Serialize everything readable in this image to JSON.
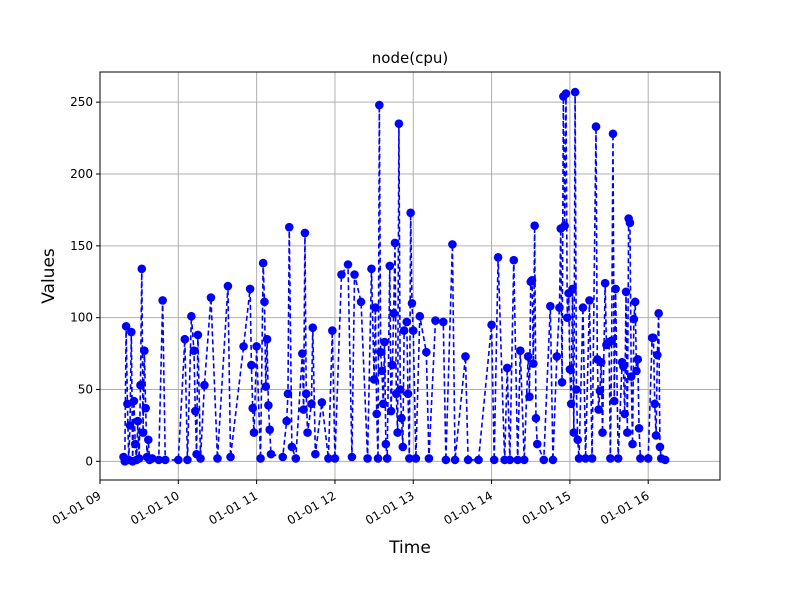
{
  "chart_data": {
    "type": "line",
    "title": "node(cpu)",
    "xlabel": "Time",
    "ylabel": "Values",
    "x_ticks": [
      "01-01 09",
      "01-01 10",
      "01-01 11",
      "01-01 12",
      "01-01 13",
      "01-01 14",
      "01-01 15",
      "01-01 16"
    ],
    "y_ticks": [
      "0",
      "50",
      "100",
      "150",
      "200",
      "250"
    ],
    "xlim": [
      "01-01 09:00",
      "01-01 16:55"
    ],
    "ylim": [
      -13,
      271
    ],
    "grid": true,
    "line_style": "dashed",
    "marker": "circle",
    "color": "#0000ff",
    "series": [
      {
        "points": [
          [
            "09:18",
            3
          ],
          [
            "09:19",
            0
          ],
          [
            "09:20",
            94
          ],
          [
            "09:21",
            40
          ],
          [
            "09:22",
            1
          ],
          [
            "09:23",
            25
          ],
          [
            "09:24",
            90
          ],
          [
            "09:25",
            0
          ],
          [
            "09:26",
            42
          ],
          [
            "09:27",
            12
          ],
          [
            "09:28",
            1
          ],
          [
            "09:29",
            28
          ],
          [
            "09:30",
            2
          ],
          [
            "09:31",
            53
          ],
          [
            "09:32",
            134
          ],
          [
            "09:33",
            20
          ],
          [
            "09:34",
            77
          ],
          [
            "09:35",
            37
          ],
          [
            "09:36",
            3
          ],
          [
            "09:37",
            15
          ],
          [
            "09:38",
            1
          ],
          [
            "09:40",
            2
          ],
          [
            "09:45",
            1
          ],
          [
            "09:48",
            112
          ],
          [
            "09:50",
            1
          ],
          [
            "10:00",
            1
          ],
          [
            "10:05",
            85
          ],
          [
            "10:07",
            1
          ],
          [
            "10:10",
            101
          ],
          [
            "10:12",
            77
          ],
          [
            "10:13",
            35
          ],
          [
            "10:14",
            5
          ],
          [
            "10:15",
            88
          ],
          [
            "10:17",
            2
          ],
          [
            "10:20",
            53
          ],
          [
            "10:25",
            114
          ],
          [
            "10:30",
            2
          ],
          [
            "10:38",
            122
          ],
          [
            "10:40",
            3
          ],
          [
            "10:50",
            80
          ],
          [
            "10:55",
            120
          ],
          [
            "10:56",
            67
          ],
          [
            "10:57",
            37
          ],
          [
            "10:58",
            20
          ],
          [
            "11:00",
            80
          ],
          [
            "11:03",
            2
          ],
          [
            "11:05",
            138
          ],
          [
            "11:06",
            111
          ],
          [
            "11:07",
            52
          ],
          [
            "11:08",
            85
          ],
          [
            "11:09",
            39
          ],
          [
            "11:10",
            22
          ],
          [
            "11:11",
            5
          ],
          [
            "11:20",
            3
          ],
          [
            "11:23",
            28
          ],
          [
            "11:24",
            47
          ],
          [
            "11:25",
            163
          ],
          [
            "11:27",
            10
          ],
          [
            "11:30",
            2
          ],
          [
            "11:35",
            75
          ],
          [
            "11:36",
            36
          ],
          [
            "11:37",
            159
          ],
          [
            "11:38",
            47
          ],
          [
            "11:39",
            20
          ],
          [
            "11:42",
            40
          ],
          [
            "11:43",
            93
          ],
          [
            "11:45",
            5
          ],
          [
            "11:50",
            41
          ],
          [
            "11:55",
            2
          ],
          [
            "11:58",
            91
          ],
          [
            "12:00",
            2
          ],
          [
            "12:05",
            130
          ],
          [
            "12:10",
            137
          ],
          [
            "12:13",
            3
          ],
          [
            "12:15",
            130
          ],
          [
            "12:20",
            111
          ],
          [
            "12:25",
            2
          ],
          [
            "12:28",
            134
          ],
          [
            "12:30",
            57
          ],
          [
            "12:31",
            107
          ],
          [
            "12:32",
            33
          ],
          [
            "12:33",
            2
          ],
          [
            "12:34",
            248
          ],
          [
            "12:35",
            76
          ],
          [
            "12:36",
            63
          ],
          [
            "12:37",
            40
          ],
          [
            "12:38",
            83
          ],
          [
            "12:39",
            12
          ],
          [
            "12:40",
            2
          ],
          [
            "12:42",
            136
          ],
          [
            "12:43",
            35
          ],
          [
            "12:44",
            67
          ],
          [
            "12:45",
            103
          ],
          [
            "12:46",
            152
          ],
          [
            "12:47",
            47
          ],
          [
            "12:48",
            20
          ],
          [
            "12:49",
            235
          ],
          [
            "12:50",
            50
          ],
          [
            "12:51",
            30
          ],
          [
            "12:52",
            10
          ],
          [
            "12:53",
            91
          ],
          [
            "12:55",
            97
          ],
          [
            "12:56",
            47
          ],
          [
            "12:57",
            2
          ],
          [
            "12:58",
            173
          ],
          [
            "12:59",
            110
          ],
          [
            "13:00",
            91
          ],
          [
            "13:02",
            2
          ],
          [
            "13:05",
            101
          ],
          [
            "13:10",
            76
          ],
          [
            "13:12",
            2
          ],
          [
            "13:17",
            98
          ],
          [
            "13:23",
            97
          ],
          [
            "13:25",
            1
          ],
          [
            "13:30",
            151
          ],
          [
            "13:32",
            1
          ],
          [
            "13:40",
            73
          ],
          [
            "13:42",
            1
          ],
          [
            "13:50",
            1
          ],
          [
            "14:00",
            95
          ],
          [
            "14:02",
            1
          ],
          [
            "14:05",
            142
          ],
          [
            "14:10",
            1
          ],
          [
            "14:12",
            65
          ],
          [
            "14:14",
            1
          ],
          [
            "14:17",
            140
          ],
          [
            "14:20",
            1
          ],
          [
            "14:22",
            77
          ],
          [
            "14:25",
            1
          ],
          [
            "14:28",
            73
          ],
          [
            "14:29",
            45
          ],
          [
            "14:30",
            125
          ],
          [
            "14:31",
            126
          ],
          [
            "14:32",
            68
          ],
          [
            "14:33",
            164
          ],
          [
            "14:34",
            30
          ],
          [
            "14:35",
            12
          ],
          [
            "14:40",
            1
          ],
          [
            "14:45",
            108
          ],
          [
            "14:47",
            1
          ],
          [
            "14:50",
            73
          ],
          [
            "14:52",
            107
          ],
          [
            "14:53",
            162
          ],
          [
            "14:54",
            55
          ],
          [
            "14:55",
            254
          ],
          [
            "14:56",
            164
          ],
          [
            "14:57",
            256
          ],
          [
            "14:58",
            100
          ],
          [
            "14:59",
            117
          ],
          [
            "15:00",
            64
          ],
          [
            "15:01",
            40
          ],
          [
            "15:02",
            120
          ],
          [
            "15:03",
            20
          ],
          [
            "15:04",
            257
          ],
          [
            "15:05",
            50
          ],
          [
            "15:06",
            15
          ],
          [
            "15:07",
            2
          ],
          [
            "15:10",
            107
          ],
          [
            "15:12",
            2
          ],
          [
            "15:15",
            112
          ],
          [
            "15:17",
            2
          ],
          [
            "15:20",
            233
          ],
          [
            "15:21",
            71
          ],
          [
            "15:22",
            36
          ],
          [
            "15:23",
            49
          ],
          [
            "15:24",
            69
          ],
          [
            "15:25",
            20
          ],
          [
            "15:27",
            124
          ],
          [
            "15:28",
            81
          ],
          [
            "15:30",
            83
          ],
          [
            "15:31",
            2
          ],
          [
            "15:32",
            84
          ],
          [
            "15:33",
            228
          ],
          [
            "15:34",
            42
          ],
          [
            "15:35",
            120
          ],
          [
            "15:37",
            2
          ],
          [
            "15:40",
            69
          ],
          [
            "15:41",
            66
          ],
          [
            "15:42",
            33
          ],
          [
            "15:43",
            118
          ],
          [
            "15:44",
            20
          ],
          [
            "15:45",
            169
          ],
          [
            "15:46",
            166
          ],
          [
            "15:47",
            59
          ],
          [
            "15:48",
            12
          ],
          [
            "15:49",
            99
          ],
          [
            "15:50",
            111
          ],
          [
            "15:51",
            63
          ],
          [
            "15:52",
            71
          ],
          [
            "15:53",
            23
          ],
          [
            "15:54",
            2
          ],
          [
            "16:00",
            2
          ],
          [
            "16:03",
            86
          ],
          [
            "16:04",
            86
          ],
          [
            "16:05",
            40
          ],
          [
            "16:06",
            18
          ],
          [
            "16:07",
            74
          ],
          [
            "16:08",
            103
          ],
          [
            "16:09",
            10
          ],
          [
            "16:10",
            2
          ],
          [
            "16:13",
            1
          ]
        ]
      }
    ]
  }
}
